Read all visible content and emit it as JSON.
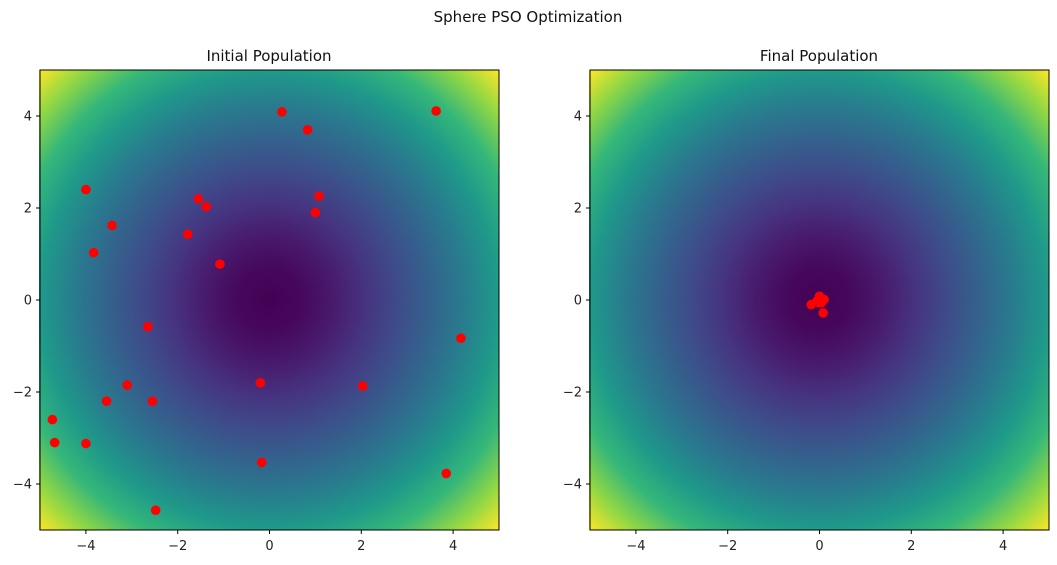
{
  "figure": {
    "title": "Sphere PSO Optimization"
  },
  "chart_data": [
    {
      "type": "scatter",
      "title": "Initial Population",
      "background": "contour of sphere function f(x,y)=x^2+y^2, viridis colormap",
      "xlim": [
        -5,
        5
      ],
      "ylim": [
        -5,
        5
      ],
      "xticks": [
        -4,
        -2,
        0,
        2,
        4
      ],
      "yticks": [
        -4,
        -2,
        0,
        2,
        4
      ],
      "tick_labels": [
        "−4",
        "−2",
        "0",
        "2",
        "4"
      ],
      "marker_color": "#ff0000",
      "points": [
        {
          "x": 0.27,
          "y": 4.09
        },
        {
          "x": 0.83,
          "y": 3.7
        },
        {
          "x": 3.63,
          "y": 4.11
        },
        {
          "x": -4.0,
          "y": 2.4
        },
        {
          "x": -1.55,
          "y": 2.2
        },
        {
          "x": -1.38,
          "y": 2.03
        },
        {
          "x": 1.08,
          "y": 2.26
        },
        {
          "x": 1.0,
          "y": 1.9
        },
        {
          "x": -3.43,
          "y": 1.62
        },
        {
          "x": -1.78,
          "y": 1.43
        },
        {
          "x": -3.83,
          "y": 1.03
        },
        {
          "x": -1.08,
          "y": 0.78
        },
        {
          "x": -2.65,
          "y": -0.58
        },
        {
          "x": 4.17,
          "y": -0.83
        },
        {
          "x": -3.1,
          "y": -1.85
        },
        {
          "x": -0.2,
          "y": -1.8
        },
        {
          "x": 2.03,
          "y": -1.87
        },
        {
          "x": -3.55,
          "y": -2.2
        },
        {
          "x": -2.55,
          "y": -2.2
        },
        {
          "x": -4.73,
          "y": -2.6
        },
        {
          "x": -4.68,
          "y": -3.1
        },
        {
          "x": -4.0,
          "y": -3.12
        },
        {
          "x": -0.17,
          "y": -3.53
        },
        {
          "x": 3.85,
          "y": -3.77
        },
        {
          "x": -2.48,
          "y": -4.57
        }
      ]
    },
    {
      "type": "scatter",
      "title": "Final Population",
      "background": "contour of sphere function f(x,y)=x^2+y^2, viridis colormap",
      "xlim": [
        -5,
        5
      ],
      "ylim": [
        -5,
        5
      ],
      "xticks": [
        -4,
        -2,
        0,
        2,
        4
      ],
      "yticks": [
        -4,
        -2,
        0,
        2,
        4
      ],
      "tick_labels": [
        "−4",
        "−2",
        "0",
        "2",
        "4"
      ],
      "marker_color": "#ff0000",
      "points": [
        {
          "x": -0.18,
          "y": -0.1
        },
        {
          "x": -0.05,
          "y": -0.02
        },
        {
          "x": 0.0,
          "y": 0.08
        },
        {
          "x": 0.02,
          "y": 0.03
        },
        {
          "x": 0.06,
          "y": 0.0
        },
        {
          "x": 0.1,
          "y": 0.01
        },
        {
          "x": -0.02,
          "y": -0.05
        },
        {
          "x": 0.04,
          "y": -0.06
        },
        {
          "x": 0.08,
          "y": -0.28
        },
        {
          "x": 0.01,
          "y": 0.0
        }
      ]
    }
  ]
}
